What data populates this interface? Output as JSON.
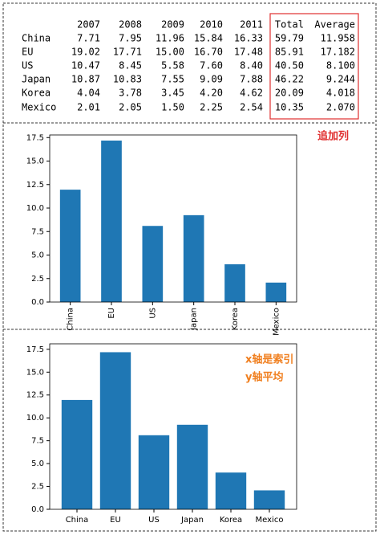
{
  "table": {
    "columns": [
      "2007",
      "2008",
      "2009",
      "2010",
      "2011",
      "Total",
      "Average"
    ],
    "rows": [
      {
        "label": "China",
        "cells": [
          "7.71",
          "7.95",
          "11.96",
          "15.84",
          "16.33",
          "59.79",
          "11.958"
        ]
      },
      {
        "label": "EU",
        "cells": [
          "19.02",
          "17.71",
          "15.00",
          "16.70",
          "17.48",
          "85.91",
          "17.182"
        ]
      },
      {
        "label": "US",
        "cells": [
          "10.47",
          "8.45",
          "5.58",
          "7.60",
          "8.40",
          "40.50",
          "8.100"
        ]
      },
      {
        "label": "Japan",
        "cells": [
          "10.87",
          "10.83",
          "7.55",
          "9.09",
          "7.88",
          "46.22",
          "9.244"
        ]
      },
      {
        "label": "Korea",
        "cells": [
          "4.04",
          "3.78",
          "3.45",
          "4.20",
          "4.62",
          "20.09",
          "4.018"
        ]
      },
      {
        "label": "Mexico",
        "cells": [
          "2.01",
          "2.05",
          "1.50",
          "2.25",
          "2.54",
          "10.35",
          "2.070"
        ]
      }
    ],
    "note": "追加列"
  },
  "chart_data": [
    {
      "type": "bar",
      "categories": [
        "China",
        "EU",
        "US",
        "Japan",
        "Korea",
        "Mexico"
      ],
      "values": [
        11.958,
        17.182,
        8.1,
        9.244,
        4.018,
        2.07
      ],
      "color": "#1f77b4",
      "ylim": [
        0,
        17.78
      ],
      "yticks": [
        {
          "value": 0,
          "label": "0.0"
        },
        2.5,
        {
          "value": 5,
          "label": "5.0"
        },
        7.5,
        {
          "value": 10,
          "label": "10.0"
        },
        12.5,
        {
          "value": 15,
          "label": "15.0"
        },
        17.5
      ],
      "x_label_rotation": 90
    },
    {
      "type": "bar",
      "categories": [
        "China",
        "EU",
        "US",
        "Japan",
        "Korea",
        "Mexico"
      ],
      "values": [
        11.958,
        17.182,
        8.1,
        9.244,
        4.018,
        2.07
      ],
      "color": "#1f77b4",
      "ylim": [
        0,
        18.1
      ],
      "yticks": [
        {
          "value": 0,
          "label": "0.0"
        },
        2.5,
        {
          "value": 5,
          "label": "5.0"
        },
        7.5,
        {
          "value": 10,
          "label": "10.0"
        },
        12.5,
        {
          "value": 15,
          "label": "15.0"
        },
        17.5
      ],
      "x_label_rotation": 0,
      "annotations": [
        "x轴是索引",
        "y轴平均"
      ]
    }
  ]
}
